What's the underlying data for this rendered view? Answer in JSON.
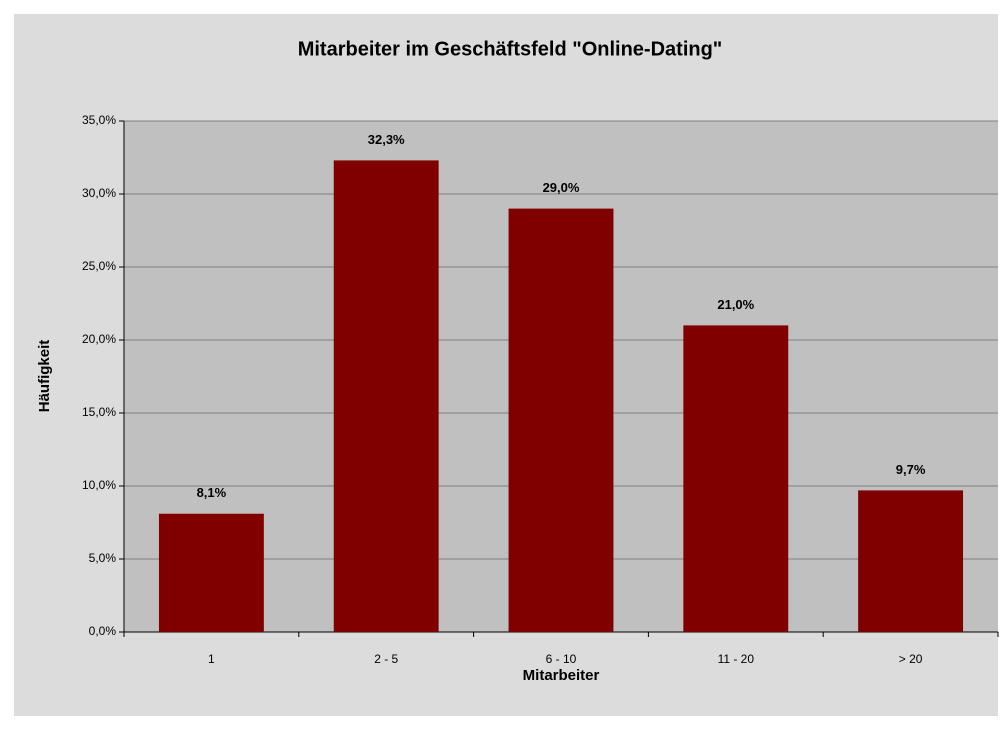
{
  "chart_data": {
    "type": "bar",
    "title": "Mitarbeiter im Geschäftsfeld \"Online-Dating\"",
    "x_label": "Mitarbeiter",
    "y_label": "Häufigkeit",
    "categories": [
      "1",
      "2 - 5",
      "6 - 10",
      "11 - 20",
      "> 20"
    ],
    "values": [
      8.1,
      32.3,
      29.0,
      21.0,
      9.7
    ],
    "value_labels": [
      "8,1%",
      "32,3%",
      "29,0%",
      "21,0%",
      "9,7%"
    ],
    "color": "#800000",
    "ylim": [
      0,
      35
    ],
    "yticks": [
      {
        "value": 0,
        "label": "0,0%"
      },
      {
        "value": 5,
        "label": "5,0%"
      },
      {
        "value": 10,
        "label": "10,0%"
      },
      {
        "value": 15,
        "label": "15,0%"
      },
      {
        "value": 20,
        "label": "20,0%"
      },
      {
        "value": 25,
        "label": "25,0%"
      },
      {
        "value": 30,
        "label": "30,0%"
      },
      {
        "value": 35,
        "label": "35,0%"
      }
    ],
    "grid": true
  }
}
